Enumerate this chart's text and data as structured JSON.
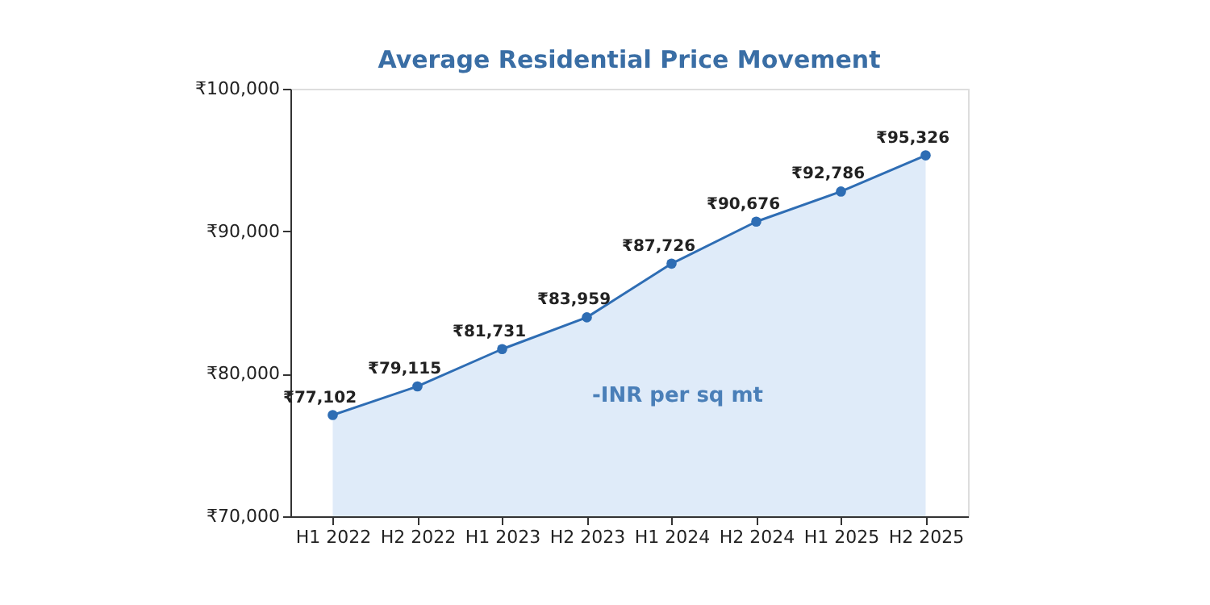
{
  "chart_data": {
    "type": "area",
    "title": "Average Residential Price Movement",
    "categories": [
      "H1 2022",
      "H2 2022",
      "H1 2023",
      "H2 2023",
      "H1 2024",
      "H2 2024",
      "H1 2025",
      "H2 2025"
    ],
    "series": [
      {
        "color": "#2e6db4",
        "values": [
          77102,
          79115,
          81731,
          83959,
          87726,
          90676,
          92786,
          95326
        ]
      }
    ],
    "value_labels": [
      "₹77,102",
      "₹79,115",
      "₹81,731",
      "₹83,959",
      "₹87,726",
      "₹90,676",
      "₹92,786",
      "₹95,326"
    ],
    "ylim": [
      70000,
      100000
    ],
    "yticks": [
      {
        "value": 70000,
        "label": "₹70,000"
      },
      {
        "value": 80000,
        "label": "₹80,000"
      },
      {
        "value": 90000,
        "label": "₹90,000"
      },
      {
        "value": 100000,
        "label": "₹100,000"
      }
    ],
    "annotations": [
      "-INR per sq mt"
    ],
    "marker": "circle",
    "grid": false
  }
}
